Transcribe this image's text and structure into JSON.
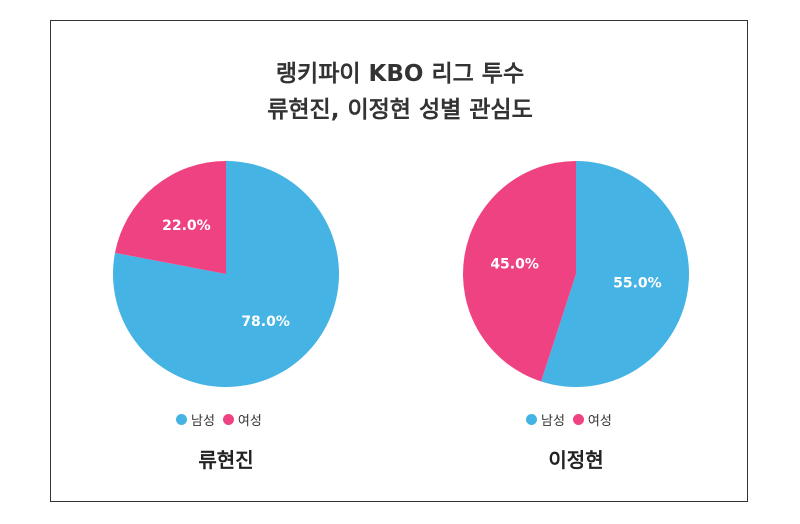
{
  "title": {
    "line1": "랭키파이 KBO 리그 투수",
    "line2": "류현진, 이정현 성별 관심도"
  },
  "colors": {
    "male": "#45B3E3",
    "female": "#EF4283"
  },
  "chart_data": [
    {
      "type": "pie",
      "title": "류현진",
      "labels": [
        "남성",
        "여성"
      ],
      "values": [
        78.0,
        22.0
      ],
      "value_labels": [
        "78.0%",
        "22.0%"
      ],
      "legend": [
        "남성",
        "여성"
      ],
      "legend_position": "bottom"
    },
    {
      "type": "pie",
      "title": "이정현",
      "labels": [
        "남성",
        "여성"
      ],
      "values": [
        55.0,
        45.0
      ],
      "value_labels": [
        "55.0%",
        "45.0%"
      ],
      "legend": [
        "남성",
        "여성"
      ],
      "legend_position": "bottom"
    }
  ]
}
